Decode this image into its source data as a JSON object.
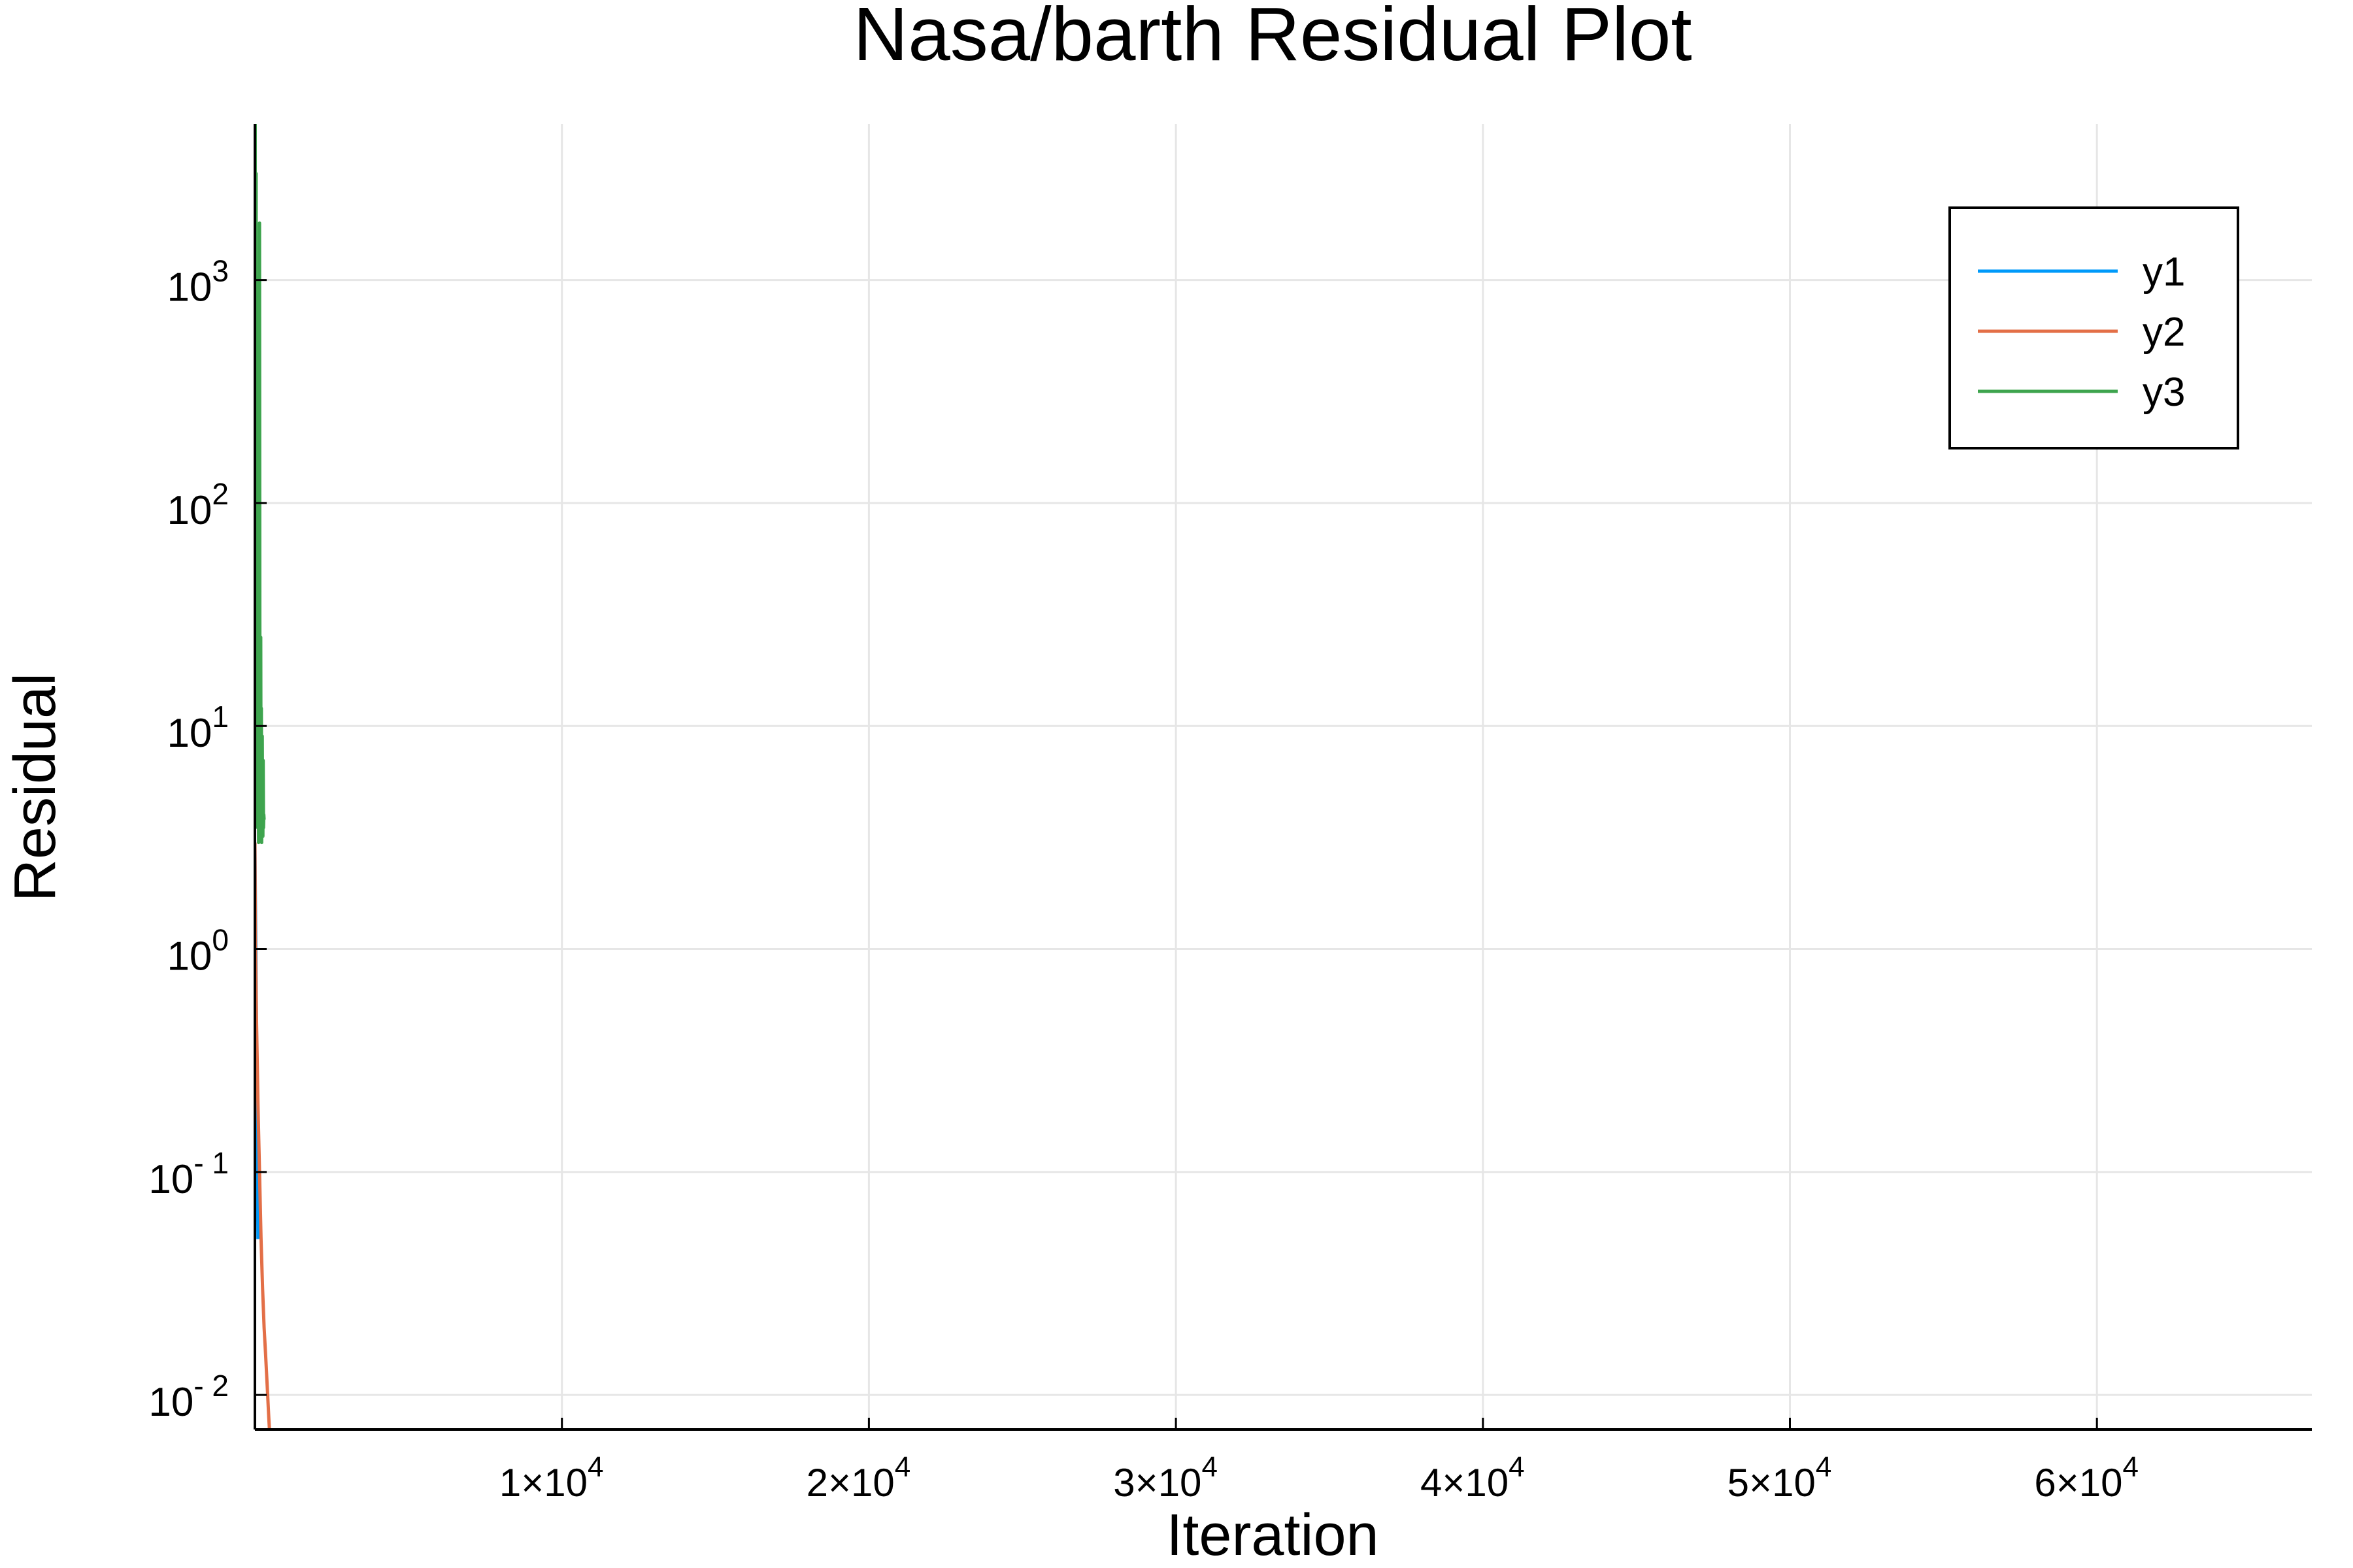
{
  "chart_data": {
    "type": "line",
    "title": "Nasa/barth Residual Plot",
    "xlabel": "Iteration",
    "ylabel": "Residual",
    "xscale": "linear",
    "yscale": "log",
    "xlim": [
      0,
      67000
    ],
    "ylim": [
      0.007,
      5000
    ],
    "grid": true,
    "legend_position": "top-right",
    "x_ticks": [
      {
        "value": 10000,
        "mantissa": "1×10",
        "exp": "4"
      },
      {
        "value": 20000,
        "mantissa": "2×10",
        "exp": "4"
      },
      {
        "value": 30000,
        "mantissa": "3×10",
        "exp": "4"
      },
      {
        "value": 40000,
        "mantissa": "4×10",
        "exp": "4"
      },
      {
        "value": 50000,
        "mantissa": "5×10",
        "exp": "4"
      },
      {
        "value": 60000,
        "mantissa": "6×10",
        "exp": "4"
      }
    ],
    "y_ticks": [
      {
        "value": 0.01,
        "base": "10",
        "exp": "- 2"
      },
      {
        "value": 0.1,
        "base": "10",
        "exp": "- 1"
      },
      {
        "value": 1,
        "base": "10",
        "exp": "0"
      },
      {
        "value": 10,
        "base": "10",
        "exp": "1"
      },
      {
        "value": 100,
        "base": "10",
        "exp": "2"
      },
      {
        "value": 1000,
        "base": "10",
        "exp": "3"
      }
    ],
    "series": [
      {
        "name": "y1",
        "color": "#009AFA",
        "x": [
          0,
          50,
          100
        ],
        "y": [
          3.0,
          0.5,
          0.05
        ]
      },
      {
        "name": "y2",
        "color": "#E36F47",
        "x": [
          0,
          20,
          50,
          100,
          150,
          200,
          250,
          300,
          350,
          400,
          450,
          500
        ],
        "y": [
          3.0,
          1.0,
          0.5,
          0.2,
          0.1,
          0.05,
          0.03,
          0.02,
          0.015,
          0.011,
          0.008,
          0.006
        ]
      },
      {
        "name": "y3",
        "color": "#3EA44E",
        "x": [
          0,
          10,
          20,
          30,
          40,
          50,
          60,
          70,
          80,
          90,
          100,
          110,
          120,
          130,
          140,
          150,
          160,
          170,
          180,
          190,
          200,
          210,
          220,
          230,
          240,
          250,
          260,
          270,
          280,
          290,
          300
        ],
        "y": [
          4.0,
          6000,
          50,
          5.0,
          3000,
          10,
          4.0,
          40,
          5.0,
          3.5,
          20,
          6.0,
          3.0,
          8.0,
          4.0,
          1800,
          30,
          5.0,
          3.5,
          25,
          4.0,
          12,
          3.0,
          6.0,
          9.0,
          4.0,
          3.2,
          7.0,
          3.5,
          4.0,
          3.8
        ]
      }
    ]
  }
}
